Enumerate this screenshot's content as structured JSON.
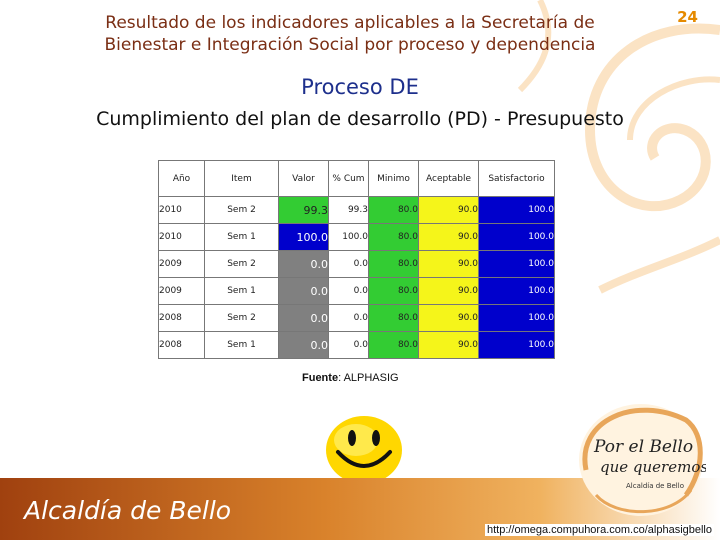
{
  "page_number": "24",
  "title_line1": "Resultado de los indicadores aplicables a la Secretaría de",
  "title_line2": "Bienestar e Integración Social  por proceso y dependencia",
  "subtitle": "Proceso DE",
  "heading": "Cumplimiento del plan de desarrollo (PD) - Presupuesto",
  "table": {
    "headers": [
      "Año",
      "Item",
      "Valor",
      "% Cum",
      "Minimo",
      "Aceptable",
      "Satisfactorio"
    ],
    "rows": [
      {
        "year": "2010",
        "item": "Sem 2",
        "valor": "99.3",
        "cum": "99.3",
        "minimo": "80.0",
        "aceptable": "90.0",
        "satisfactorio": "100.0",
        "status_color": "#33cc33"
      },
      {
        "year": "2010",
        "item": "Sem 1",
        "valor": "100.0",
        "cum": "100.0",
        "minimo": "80.0",
        "aceptable": "90.0",
        "satisfactorio": "100.0",
        "status_color": "#0000cc"
      },
      {
        "year": "2009",
        "item": "Sem 2",
        "valor": "0.0",
        "cum": "0.0",
        "minimo": "80.0",
        "aceptable": "90.0",
        "satisfactorio": "100.0",
        "status_color": "#808080"
      },
      {
        "year": "2009",
        "item": "Sem 1",
        "valor": "0.0",
        "cum": "0.0",
        "minimo": "80.0",
        "aceptable": "90.0",
        "satisfactorio": "100.0",
        "status_color": "#808080"
      },
      {
        "year": "2008",
        "item": "Sem 2",
        "valor": "0.0",
        "cum": "0.0",
        "minimo": "80.0",
        "aceptable": "90.0",
        "satisfactorio": "100.0",
        "status_color": "#808080"
      },
      {
        "year": "2008",
        "item": "Sem 1",
        "valor": "0.0",
        "cum": "0.0",
        "minimo": "80.0",
        "aceptable": "90.0",
        "satisfactorio": "100.0",
        "status_color": "#808080"
      }
    ]
  },
  "source_label": "Fuente",
  "source_value": ": ALPHASIG",
  "footer_name": "Alcaldía de Bello",
  "logo": {
    "line1": "Por el Bello",
    "line2": "que queremos",
    "line3": "Alcaldía de Bello"
  },
  "url": "http://omega.compuhora.com.co/alphasigbello",
  "colors": {
    "minimo": "#33cc33",
    "aceptable": "#f5f51a",
    "satisfactorio": "#0000cc",
    "accent": "#e58a00"
  }
}
